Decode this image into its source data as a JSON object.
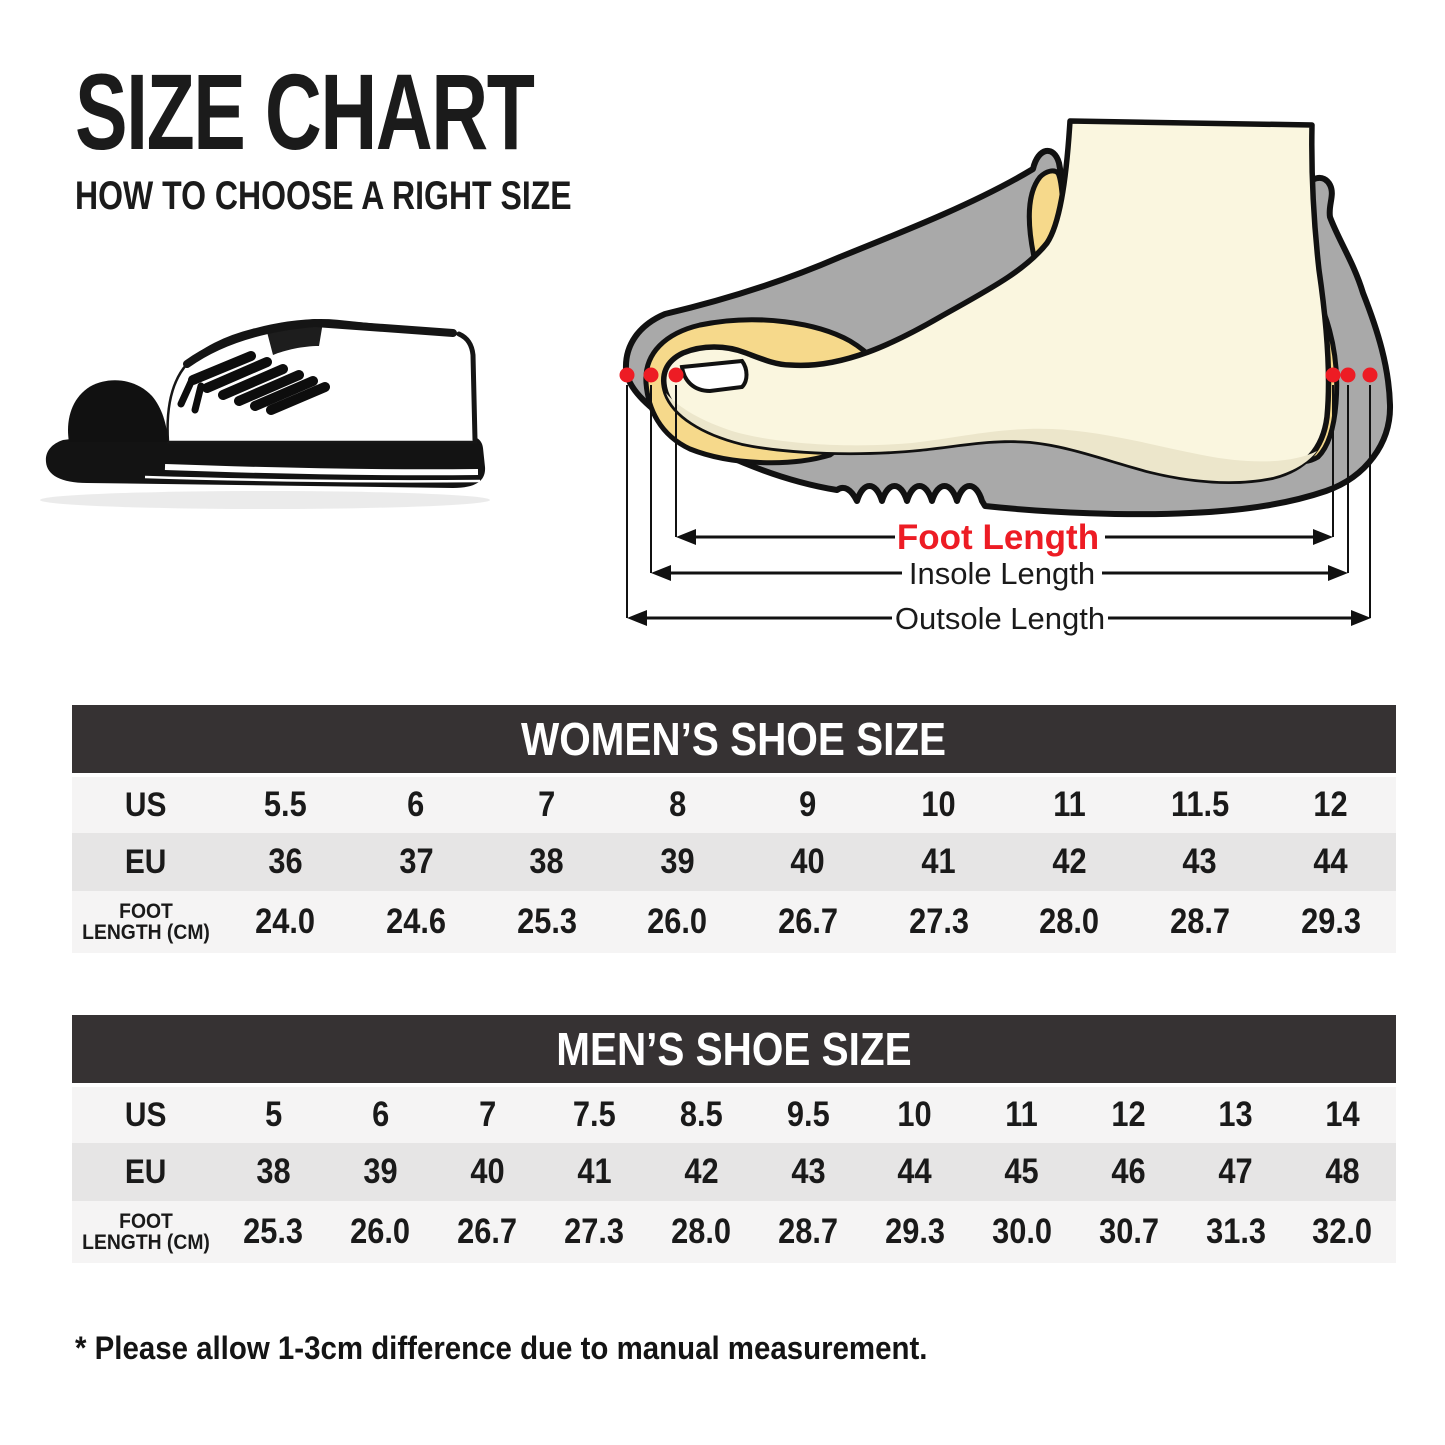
{
  "page": {
    "title": "SIZE CHART",
    "subtitle": "HOW TO CHOOSE A RIGHT SIZE",
    "footnote": "* Please allow 1-3cm difference due to manual measurement."
  },
  "diagram": {
    "foot_length": "Foot Length",
    "insole_length": "Insole Length",
    "outsole_length": "Outsole Length",
    "colors": {
      "foot": "#faf6df",
      "foot_shade": "#ece6cb",
      "insole": "#f6d98b",
      "shoe_gray": "#a9a9a9",
      "outline": "#111111",
      "marker_red": "#ed1c24"
    }
  },
  "table_style": {
    "header_bg": "#363233",
    "row_light": "#f5f4f4",
    "row_alt": "#e6e5e5"
  },
  "chart_data": [
    {
      "type": "table",
      "title": "WOMEN’S SHOE SIZE",
      "rows": [
        {
          "key": "us",
          "label_lines": [
            "US"
          ],
          "values": [
            "5.5",
            "6",
            "7",
            "8",
            "9",
            "10",
            "11",
            "11.5",
            "12"
          ]
        },
        {
          "key": "eu",
          "label_lines": [
            "EU"
          ],
          "values": [
            "36",
            "37",
            "38",
            "39",
            "40",
            "41",
            "42",
            "43",
            "44"
          ]
        },
        {
          "key": "foot-length-cm",
          "label_lines": [
            "FOOT",
            "LENGTH (CM)"
          ],
          "values": [
            "24.0",
            "24.6",
            "25.3",
            "26.0",
            "26.7",
            "27.3",
            "28.0",
            "28.7",
            "29.3"
          ]
        }
      ]
    },
    {
      "type": "table",
      "title": "MEN’S SHOE SIZE",
      "rows": [
        {
          "key": "us",
          "label_lines": [
            "US"
          ],
          "values": [
            "5",
            "6",
            "7",
            "7.5",
            "8.5",
            "9.5",
            "10",
            "11",
            "12",
            "13",
            "14"
          ]
        },
        {
          "key": "eu",
          "label_lines": [
            "EU"
          ],
          "values": [
            "38",
            "39",
            "40",
            "41",
            "42",
            "43",
            "44",
            "45",
            "46",
            "47",
            "48"
          ]
        },
        {
          "key": "foot-length-cm",
          "label_lines": [
            "FOOT",
            "LENGTH (CM)"
          ],
          "values": [
            "25.3",
            "26.0",
            "26.7",
            "27.3",
            "28.0",
            "28.7",
            "29.3",
            "30.0",
            "30.7",
            "31.3",
            "32.0"
          ]
        }
      ]
    }
  ]
}
